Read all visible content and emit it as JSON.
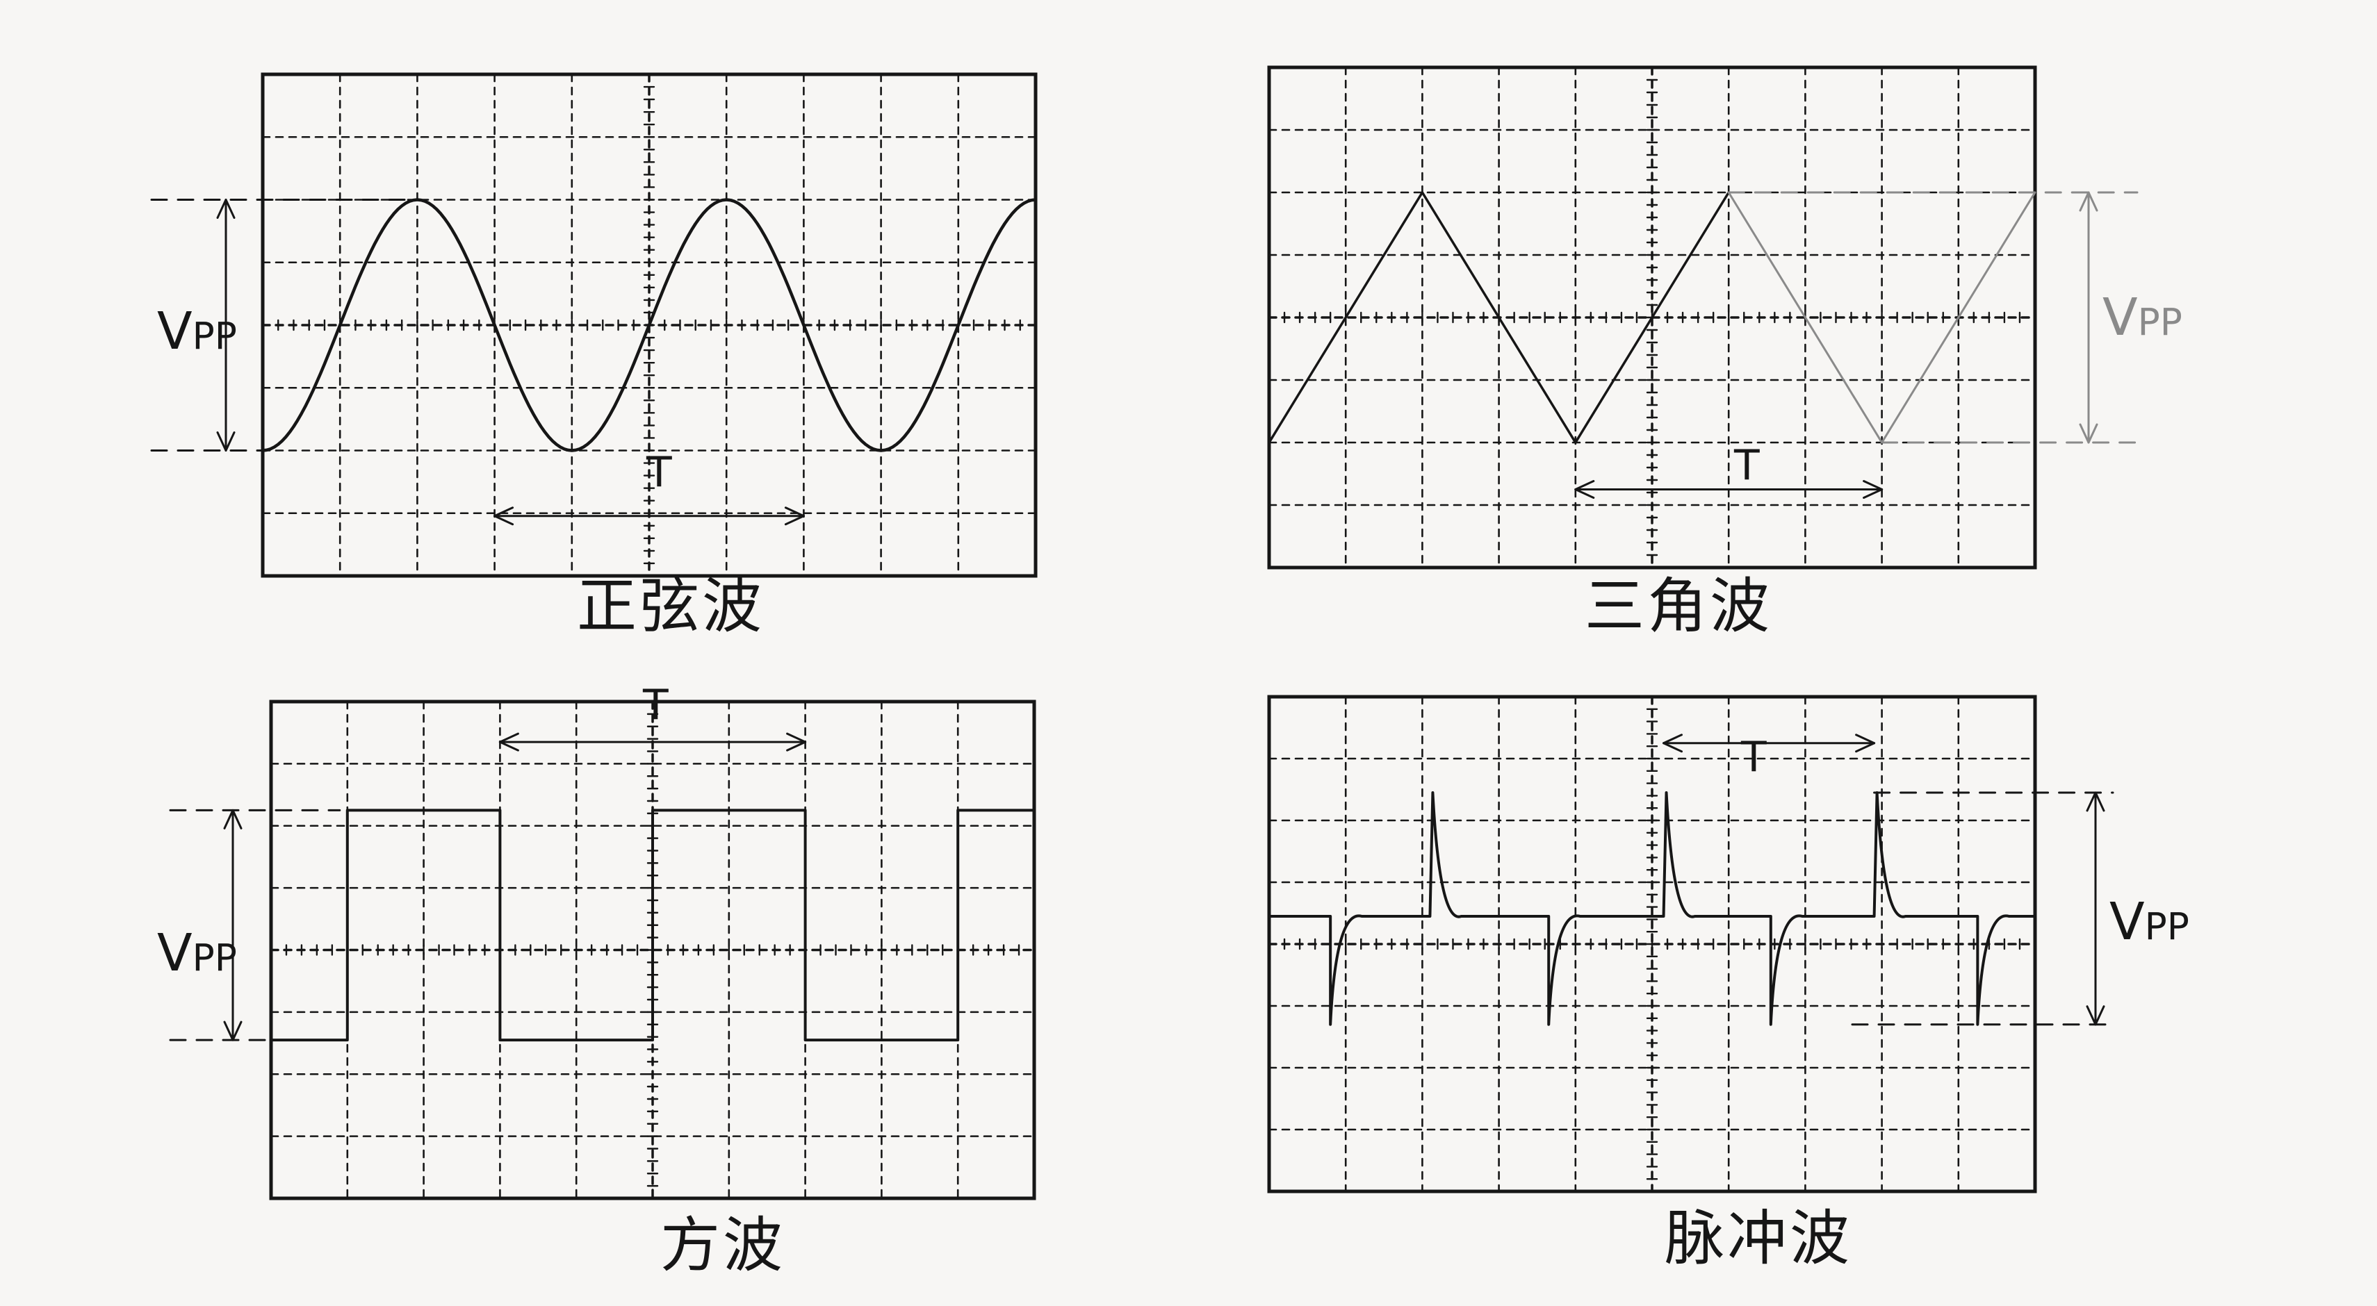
{
  "labels": {
    "sine": "正弦波",
    "triangle": "三角波",
    "square": "方波",
    "pulse": "脉冲波"
  },
  "symbols": {
    "vpp_main": "V",
    "vpp_sub": "PP",
    "period": "T"
  },
  "colors": {
    "ink": "#161616",
    "faint_ink": "#8a8a8a",
    "paper": "#f7f6f4"
  },
  "grid": {
    "columns": 10,
    "rows": 8,
    "style": "dashed"
  }
}
